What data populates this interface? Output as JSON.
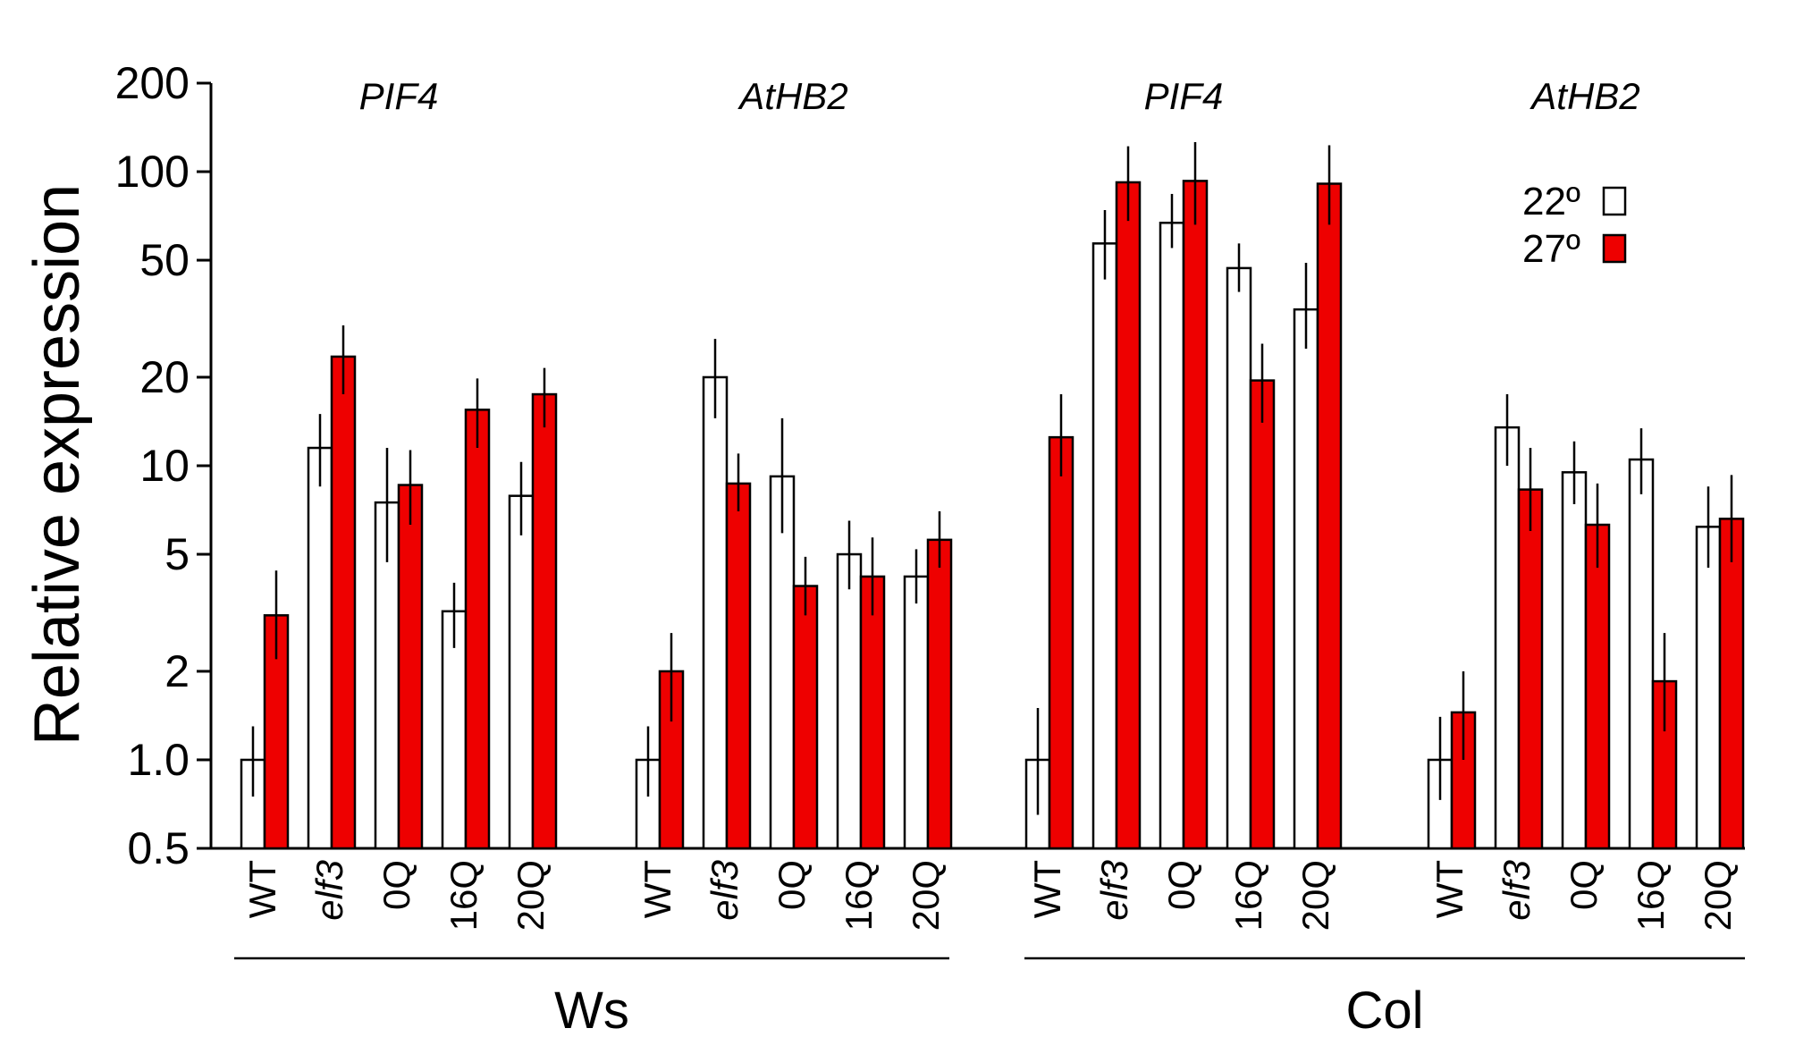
{
  "chart_data": {
    "type": "bar",
    "scale": "log",
    "ylabel": "Relative expression",
    "ylim": [
      0.5,
      200
    ],
    "yticks": [
      {
        "value": 200,
        "label": "200"
      },
      {
        "value": 100,
        "label": "100"
      },
      {
        "value": 50,
        "label": "50"
      },
      {
        "value": 20,
        "label": "20"
      },
      {
        "value": 10,
        "label": "10"
      },
      {
        "value": 5,
        "label": "5"
      },
      {
        "value": 2,
        "label": "2"
      },
      {
        "value": 1,
        "label": "1.0"
      },
      {
        "value": 0.5,
        "label": "0.5"
      }
    ],
    "legend": {
      "position": "top-right",
      "entries": [
        {
          "label": "22º",
          "color": "#ffffff"
        },
        {
          "label": "27º",
          "color": "#ee0000"
        }
      ]
    },
    "colors": {
      "22": "#ffffff",
      "27": "#ee0000",
      "stroke": "#000000"
    },
    "categories": [
      {
        "label": "WT",
        "italic": false
      },
      {
        "label": "elf3",
        "italic": true
      },
      {
        "label": "0Q",
        "italic": false
      },
      {
        "label": "16Q",
        "italic": false
      },
      {
        "label": "20Q",
        "italic": false
      }
    ],
    "groups": [
      {
        "gene": "PIF4",
        "background": "Ws",
        "v22": [
          1.0,
          11.5,
          7.5,
          3.2,
          7.9
        ],
        "e22": [
          [
            0.75,
            1.3
          ],
          [
            8.5,
            15
          ],
          [
            4.7,
            11.5
          ],
          [
            2.4,
            4.0
          ],
          [
            5.8,
            10.3
          ]
        ],
        "v27": [
          3.1,
          23.5,
          8.6,
          15.5,
          17.5
        ],
        "e27": [
          [
            2.2,
            4.4
          ],
          [
            17.5,
            30
          ],
          [
            6.3,
            11.3
          ],
          [
            11.5,
            19.8
          ],
          [
            13.5,
            21.5
          ]
        ]
      },
      {
        "gene": "AtHB2",
        "background": "Ws",
        "v22": [
          1.0,
          20,
          9.2,
          5.0,
          4.2
        ],
        "e22": [
          [
            0.75,
            1.3
          ],
          [
            14.5,
            27
          ],
          [
            5.9,
            14.5
          ],
          [
            3.8,
            6.5
          ],
          [
            3.4,
            5.2
          ]
        ],
        "v27": [
          2.0,
          8.7,
          3.9,
          4.2,
          5.6
        ],
        "e27": [
          [
            1.35,
            2.7
          ],
          [
            7.0,
            11.0
          ],
          [
            3.1,
            4.9
          ],
          [
            3.1,
            5.7
          ],
          [
            4.5,
            7.0
          ]
        ]
      },
      {
        "gene": "PIF4",
        "background": "Col",
        "v22": [
          1.0,
          57,
          67,
          47,
          34
        ],
        "e22": [
          [
            0.65,
            1.5
          ],
          [
            43,
            74
          ],
          [
            55,
            84
          ],
          [
            39,
            57
          ],
          [
            25,
            49
          ]
        ],
        "v27": [
          12.5,
          92,
          93,
          19.5,
          91
        ],
        "e27": [
          [
            9.2,
            17.5
          ],
          [
            68,
            122
          ],
          [
            66,
            126
          ],
          [
            14,
            26
          ],
          [
            66,
            123
          ]
        ],
        "v27_note": ""
      },
      {
        "gene": "AtHB2",
        "background": "Col",
        "v22": [
          1.0,
          13.5,
          9.5,
          10.5,
          6.2
        ],
        "e22": [
          [
            0.73,
            1.4
          ],
          [
            10.0,
            17.5
          ],
          [
            7.4,
            12.1
          ],
          [
            8.0,
            13.4
          ],
          [
            4.5,
            8.5
          ]
        ],
        "v27": [
          1.45,
          8.3,
          6.3,
          1.85,
          6.6
        ],
        "e27": [
          [
            1.0,
            2.0
          ],
          [
            6.0,
            11.5
          ],
          [
            4.5,
            8.7
          ],
          [
            1.25,
            2.7
          ],
          [
            4.7,
            9.3
          ]
        ]
      }
    ],
    "backgrounds": [
      {
        "label": "Ws"
      },
      {
        "label": "Col"
      }
    ]
  }
}
